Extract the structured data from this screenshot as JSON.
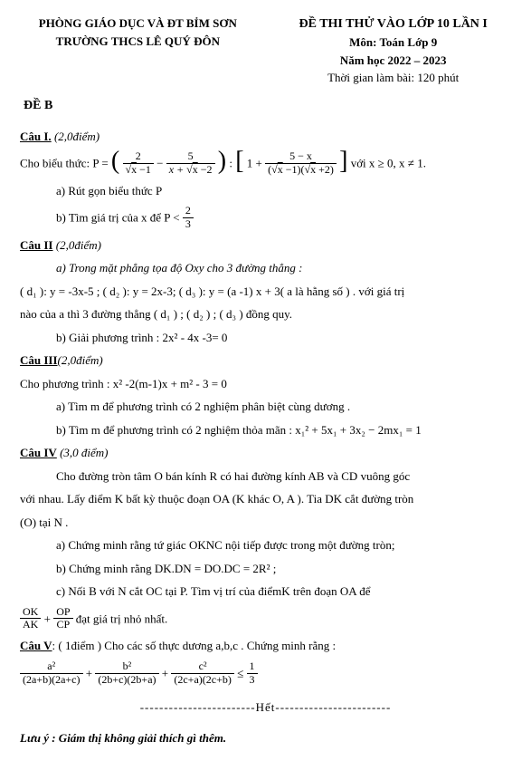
{
  "header": {
    "dept": "PHÒNG GIÁO DỤC VÀ ĐT BỈM SƠN",
    "school": "TRƯỜNG THCS LÊ QUÝ ĐÔN",
    "exam_title": "ĐỀ THI THỬ VÀO LỚP 10 LẦN I",
    "subject": "Môn: Toán Lớp 9",
    "year": "Năm học 2022 – 2023",
    "duration": "Thời gian làm bài: 120 phút",
    "variant": "ĐỀ B"
  },
  "q1": {
    "title": "Câu I.",
    "points": " (2,0điểm)",
    "lead": "Cho biểu thức:  P = ",
    "f1_num": "2",
    "f1_den_pre": "√",
    "f1_den": "x",
    "f1_den_post": " −1",
    "minus": " − ",
    "f2_num": "5",
    "f2_den": "x + √",
    "f2_den2": "x",
    "f2_den3": " −2",
    "colon": " : ",
    "one_plus": "1 + ",
    "f3_num": "5 − x",
    "f3_den": "(√",
    "f3_den_x1": "x",
    "f3_den_mid": " −1)(√",
    "f3_den_x2": "x",
    "f3_den_end": " +2)",
    "cond": " với  x ≥ 0,  x ≠ 1.",
    "a": "a) Rút gọn biểu thức P",
    "b_pre": "b) Tìm giá trị của x để P < ",
    "b_num": "2",
    "b_den": "3"
  },
  "q2": {
    "title": "Câu II",
    "points": " (2,0điểm)",
    "a": "a) Trong mặt phẳng tọa độ Oxy cho 3 đường thẳng :",
    "lines": "( d₁ ): y  = -3x-5 ; ( d₂ ): y  = 2x-3; ( d₃ ): y  = (a -1) x  + 3( a là hằng số ) . với giá trị",
    "lines2": "nào của a thì 3 đường thẳng ( d₁ ) ; ( d₂ ) ; ( d₃ ) đồng quy.",
    "b": "b) Giải phương trình :   2x² - 4x -3= 0"
  },
  "q3": {
    "title": "Câu III",
    "points": "(2,0điểm)",
    "lead": "Cho phương trình : x² -2(m-1)x + m² - 3 = 0",
    "a": "a) Tìm m để phương trình có 2 nghiệm phân biệt cùng dương .",
    "b": "b) Tìm m để phương trình có 2 nghiệm thỏa mãn :  x₁² + 5x₁ + 3x₂ − 2mx₁ = 1"
  },
  "q4": {
    "title": "Câu IV",
    "points": " (3,0 điểm)",
    "p1": "Cho đường tròn tâm O bán kính R có hai đường kính AB và CD vuông góc",
    "p2": "với nhau. Lấy điểm K bất kỳ thuộc đoạn OA  (K khác O, A ). Tia DK cắt đường tròn",
    "p3": "(O) tại  N .",
    "a": "a) Chứng minh rằng tứ giác OKNC nội tiếp được trong một đường tròn;",
    "b": "b) Chứng minh rằng  DK.DN  =  DO.DC  = 2R²  ;",
    "c": "c) Nối  B  với N  cắt OC  tại  P.  Tìm vị trí của điểmK   trên đoạn OA để",
    "frac1_num": "OK",
    "frac1_den": "AK",
    "plus": " + ",
    "frac2_num": "OP",
    "frac2_den": "CP",
    "c_tail": " đạt giá trị nhỏ nhất."
  },
  "q5": {
    "title": "Câu V",
    "points": ": ( 1điểm ) Cho các số thực dương a,b,c . Chứng minh rằng :",
    "t1_num": "a²",
    "t1_den": "(2a+b)(2a+c)",
    "t2_num": "b²",
    "t2_den": "(2b+c)(2b+a)",
    "t3_num": "c²",
    "t3_den": "(2c+a)(2c+b)",
    "le": " ≤ ",
    "r_num": "1",
    "r_den": "3",
    "plus": " + "
  },
  "het": "------------------------Hết------------------------",
  "note": "Lưu ý :  Giám thị không giải thích gì thêm."
}
